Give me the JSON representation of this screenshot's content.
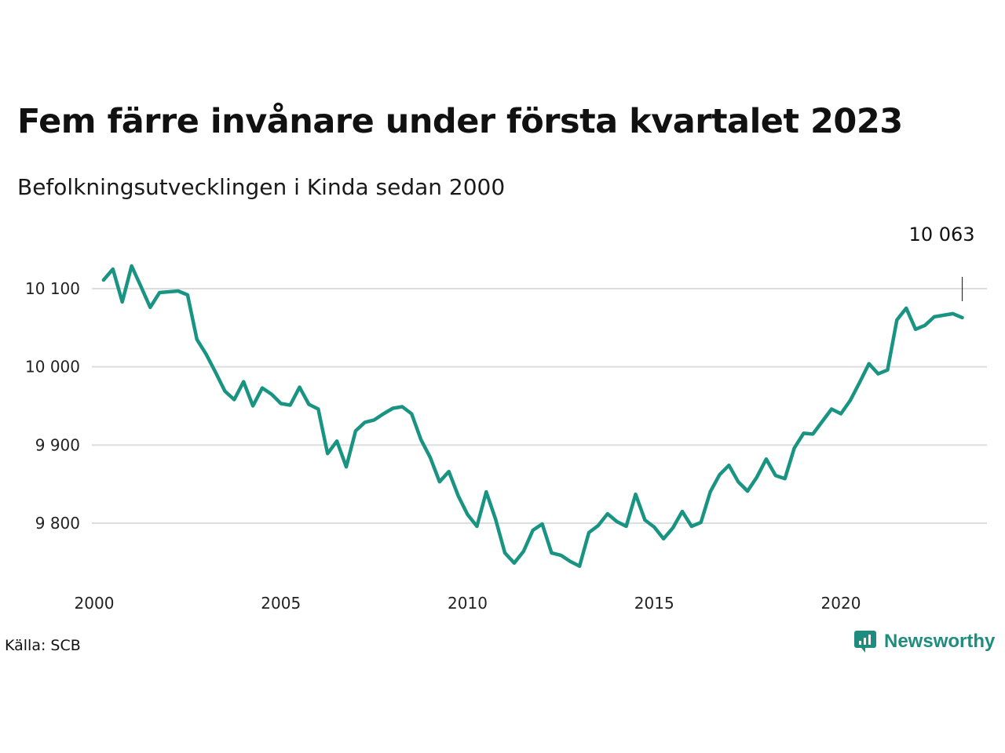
{
  "title": "Fem färre invånare under första kvartalet 2023",
  "subtitle": "Befolkningsutvecklingen i Kinda sedan 2000",
  "source": "Källa: SCB",
  "brand": "Newsworthy",
  "colors": {
    "line": "#1a9482",
    "grid": "#dddddd",
    "brand": "#1e8c7e"
  },
  "chart_data": {
    "type": "line",
    "title": "Fem färre invånare under första kvartalet 2023",
    "subtitle": "Befolkningsutvecklingen i Kinda sedan 2000",
    "xlabel": "",
    "ylabel": "",
    "xlim": [
      2000,
      2024.25
    ],
    "ylim": [
      9730,
      10135
    ],
    "x_ticks": [
      2000,
      2005,
      2010,
      2015,
      2020
    ],
    "x_tick_labels": [
      "2000",
      "2005",
      "2010",
      "2015",
      "2020"
    ],
    "y_ticks": [
      9800,
      9900,
      10000,
      10100
    ],
    "y_tick_labels": [
      "9 800",
      "9 900",
      "10 000",
      "10 100"
    ],
    "grid": true,
    "legend": "none",
    "end_label": "10 063",
    "series": [
      {
        "x": [
          2000.25,
          2000.5,
          2000.75,
          2001.0,
          2001.25,
          2001.5,
          2001.75,
          2002.0,
          2002.25,
          2002.5,
          2002.75,
          2003.0,
          2003.25,
          2003.5,
          2003.75,
          2004.0,
          2004.25,
          2004.5,
          2004.75,
          2005.0,
          2005.25,
          2005.5,
          2005.75,
          2006.0,
          2006.25,
          2006.5,
          2006.75,
          2007.0,
          2007.25,
          2007.5,
          2007.75,
          2008.0,
          2008.25,
          2008.5,
          2008.75,
          2009.0,
          2009.25,
          2009.5,
          2009.75,
          2010.0,
          2010.25,
          2010.5,
          2010.75,
          2011.0,
          2011.25,
          2011.5,
          2011.75,
          2012.0,
          2012.25,
          2012.5,
          2012.75,
          2013.0,
          2013.25,
          2013.5,
          2013.75,
          2014.0,
          2014.25,
          2014.5,
          2014.75,
          2015.0,
          2015.25,
          2015.5,
          2015.75,
          2016.0,
          2016.25,
          2016.5,
          2016.75,
          2017.0,
          2017.25,
          2017.5,
          2017.75,
          2018.0,
          2018.25,
          2018.5,
          2018.75,
          2019.0,
          2019.25,
          2019.5,
          2019.75,
          2020.0,
          2020.25,
          2020.5,
          2020.75,
          2021.0,
          2021.25,
          2021.5,
          2021.75,
          2022.0,
          2022.25,
          2022.5,
          2022.75,
          2023.0,
          2023.25
        ],
        "values": [
          10111,
          10125,
          10083,
          10129,
          10103,
          10076,
          10095,
          10096,
          10097,
          10092,
          10035,
          10016,
          9993,
          9969,
          9958,
          9981,
          9950,
          9973,
          9965,
          9953,
          9951,
          9974,
          9952,
          9946,
          9889,
          9905,
          9872,
          9918,
          9929,
          9932,
          9940,
          9947,
          9949,
          9940,
          9907,
          9884,
          9853,
          9866,
          9835,
          9811,
          9796,
          9840,
          9805,
          9762,
          9749,
          9764,
          9791,
          9799,
          9762,
          9759,
          9751,
          9745,
          9788,
          9797,
          9812,
          9802,
          9796,
          9837,
          9804,
          9795,
          9780,
          9794,
          9815,
          9796,
          9801,
          9840,
          9862,
          9874,
          9853,
          9841,
          9859,
          9882,
          9861,
          9857,
          9896,
          9915,
          9914,
          9930,
          9946,
          9940,
          9957,
          9980,
          10004,
          9991,
          9996,
          10060,
          10075,
          10048,
          10053,
          10064,
          10066,
          10068,
          10063
        ]
      }
    ]
  }
}
